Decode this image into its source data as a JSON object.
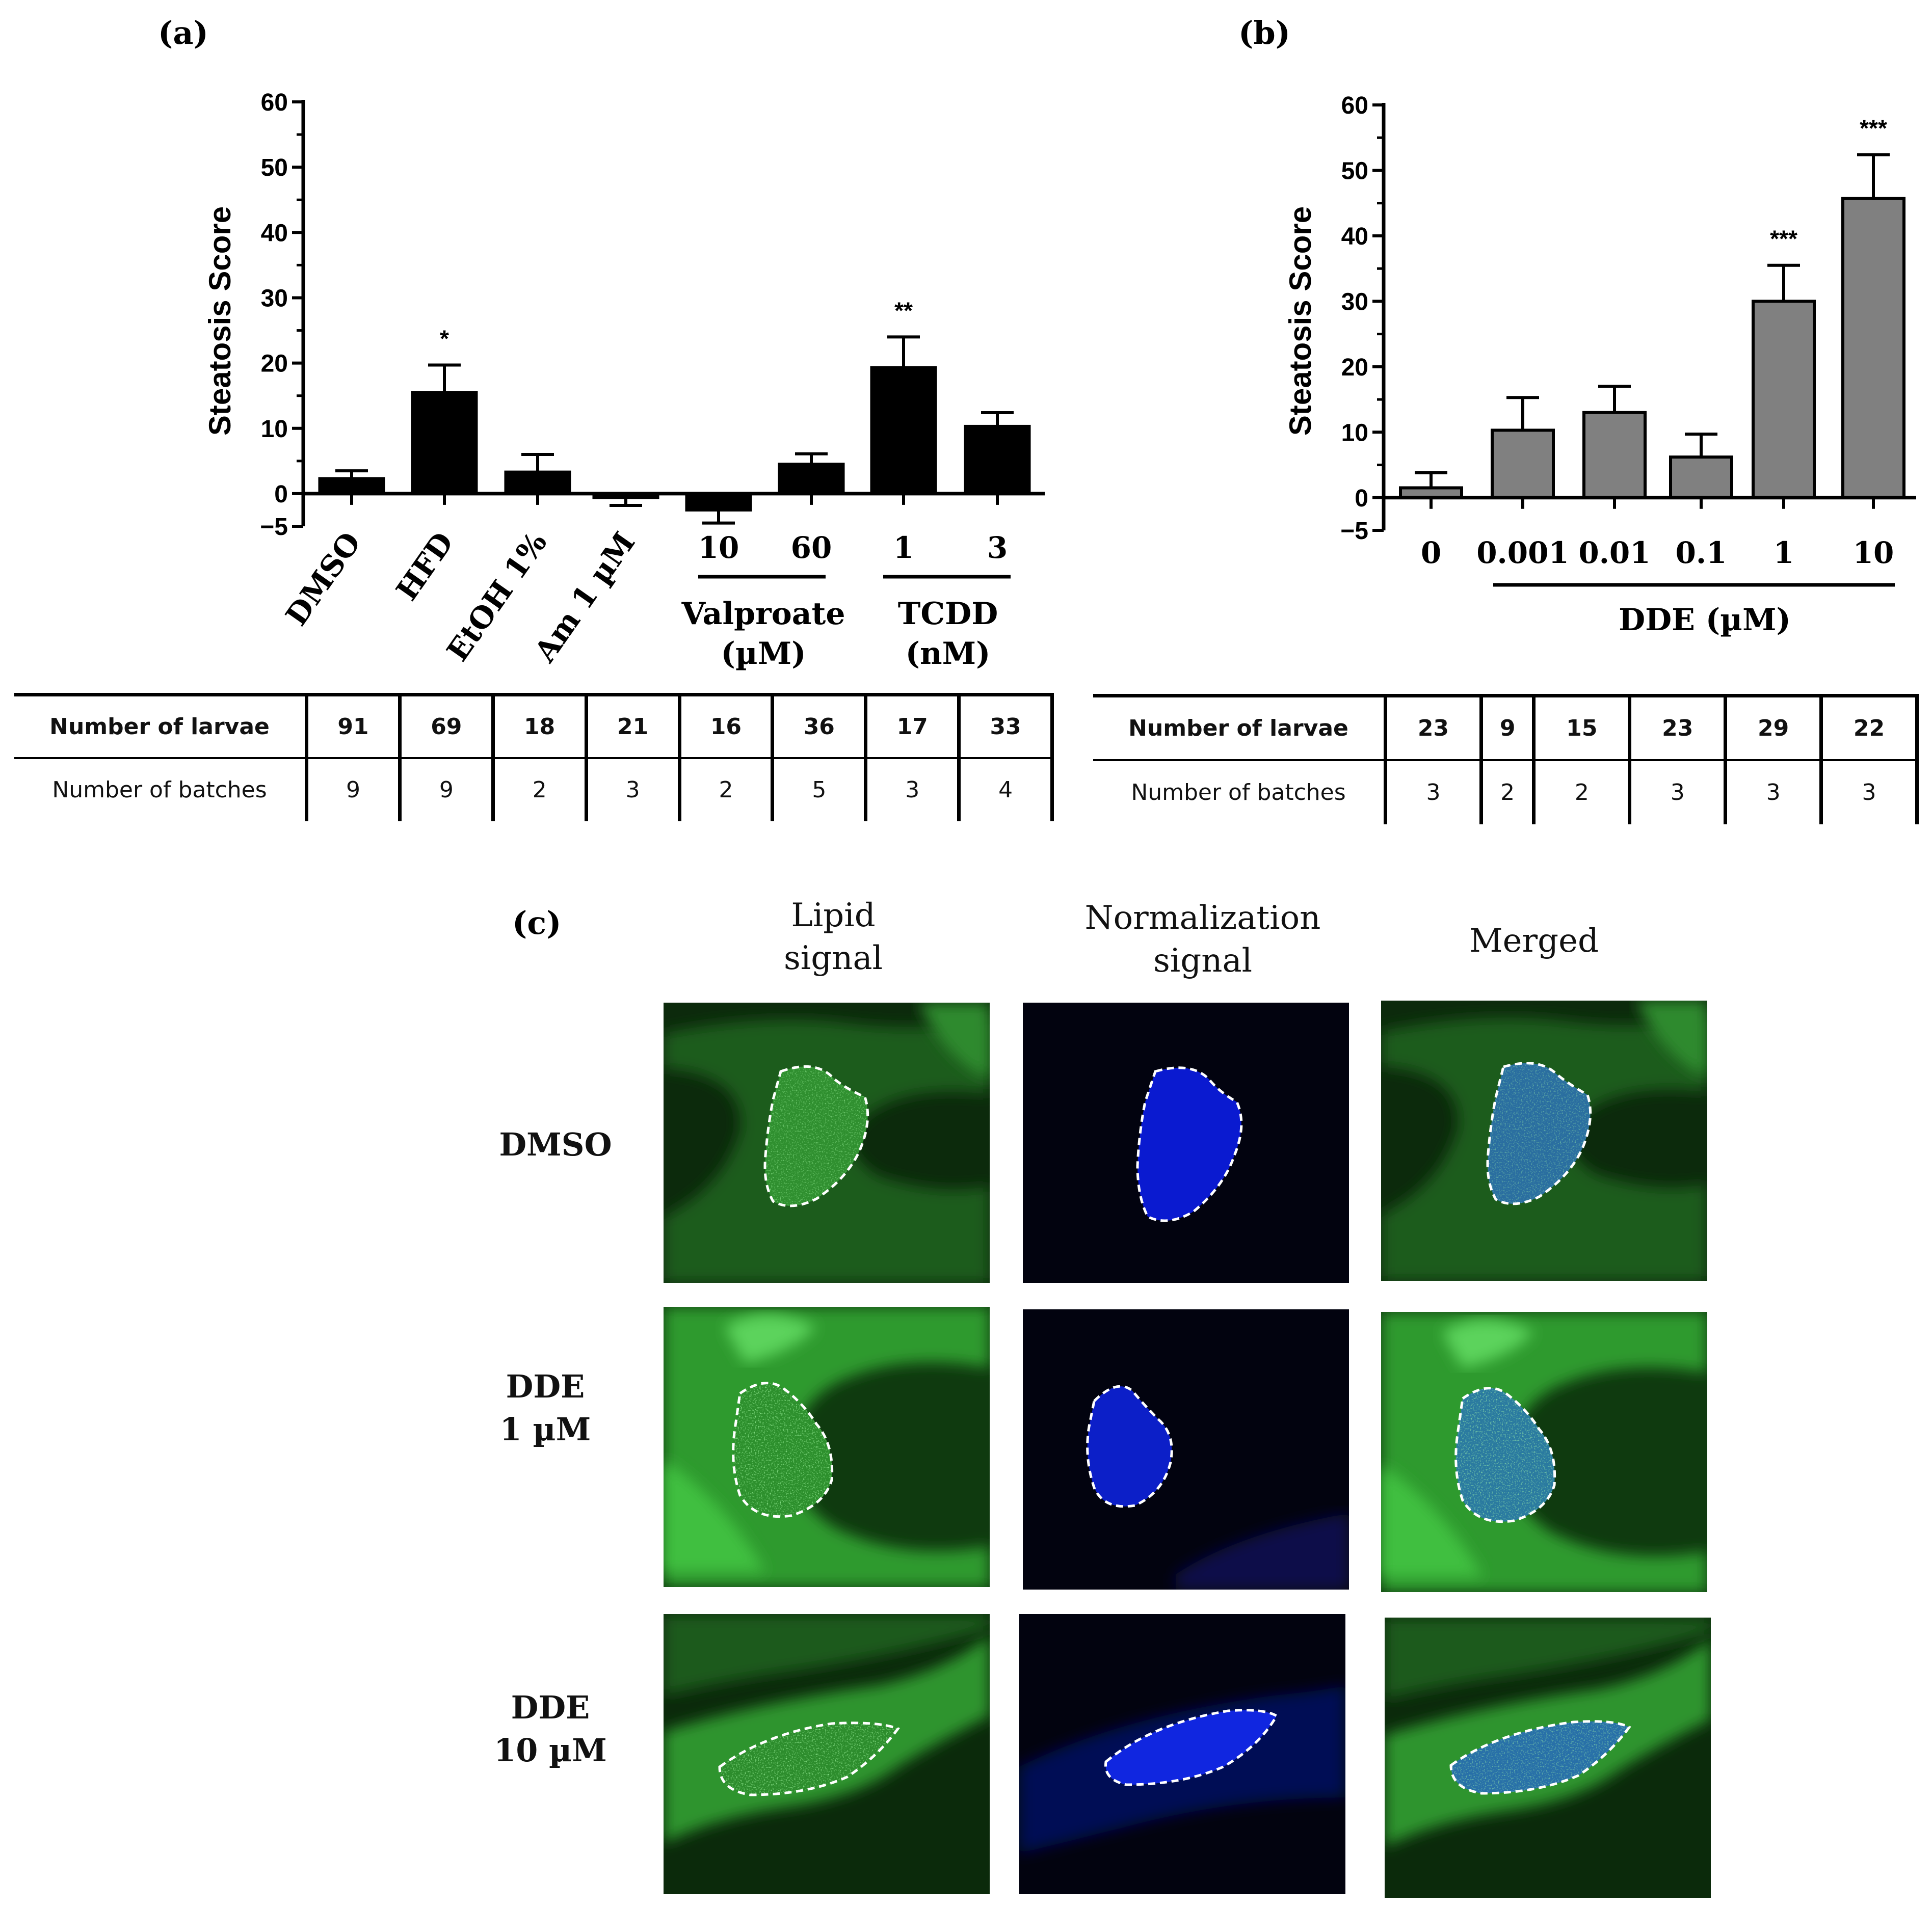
{
  "panels": {
    "a": "(a)",
    "b": "(b)",
    "c": "(c)"
  },
  "chart_data": [
    {
      "type": "bar",
      "ylabel": "Steatosis Score",
      "ylim": [
        -5,
        60
      ],
      "yticks": [
        "60",
        "50",
        "40",
        "30",
        "20",
        "10",
        "0",
        "−5"
      ],
      "categories": [
        "DMSO",
        "HFD",
        "EtOH 1%",
        "Am 1 µM",
        "10",
        "60",
        "1",
        "3"
      ],
      "values": [
        2.3,
        15.5,
        3.3,
        -0.6,
        -2.5,
        4.5,
        19.3,
        10.3
      ],
      "error": [
        1.2,
        4.2,
        2.7,
        1.2,
        2.0,
        1.6,
        4.7,
        2.1
      ],
      "significance": [
        "",
        "*",
        "",
        "",
        "",
        "",
        "**",
        ""
      ],
      "groups": [
        {
          "line1": "Valproate",
          "line2": "(µM)"
        },
        {
          "line1": "TCDD",
          "line2": "(nM)"
        }
      ],
      "bar_color": "#000000",
      "table": {
        "row1_label": "Number of larvae",
        "row1": [
          "91",
          "69",
          "18",
          "21",
          "16",
          "36",
          "17",
          "33"
        ],
        "row2_label": "Number of batches",
        "row2": [
          "9",
          "9",
          "2",
          "3",
          "2",
          "5",
          "3",
          "4"
        ]
      }
    },
    {
      "type": "bar",
      "ylabel": "Steatosis Score",
      "ylim": [
        -5,
        60
      ],
      "yticks": [
        "60",
        "50",
        "40",
        "30",
        "20",
        "10",
        "0",
        "−5"
      ],
      "categories": [
        "0",
        "0.001",
        "0.01",
        "0.1",
        "1",
        "10"
      ],
      "values": [
        1.5,
        10.3,
        13.0,
        6.2,
        30.0,
        45.7
      ],
      "error": [
        2.3,
        5.0,
        4.0,
        3.5,
        5.5,
        6.7
      ],
      "significance": [
        "",
        "",
        "",
        "",
        "***",
        "***"
      ],
      "group_label": "DDE (µM)",
      "bar_color": "#808080",
      "table": {
        "row1_label": "Number of larvae",
        "row1": [
          "23",
          "9",
          "15",
          "23",
          "29",
          "22"
        ],
        "row2_label": "Number of batches",
        "row2": [
          "3",
          "2",
          "2",
          "3",
          "3",
          "3"
        ]
      }
    }
  ],
  "micrographs": {
    "columns": [
      {
        "line1": "Lipid",
        "line2": "signal"
      },
      {
        "line1": "Normalization",
        "line2": "signal"
      },
      {
        "line1": "Merged",
        "line2": ""
      }
    ],
    "rows": [
      {
        "line1": "DMSO",
        "line2": ""
      },
      {
        "line1": "DDE",
        "line2": "1 µM"
      },
      {
        "line1": "DDE",
        "line2": "10 µM"
      }
    ]
  }
}
